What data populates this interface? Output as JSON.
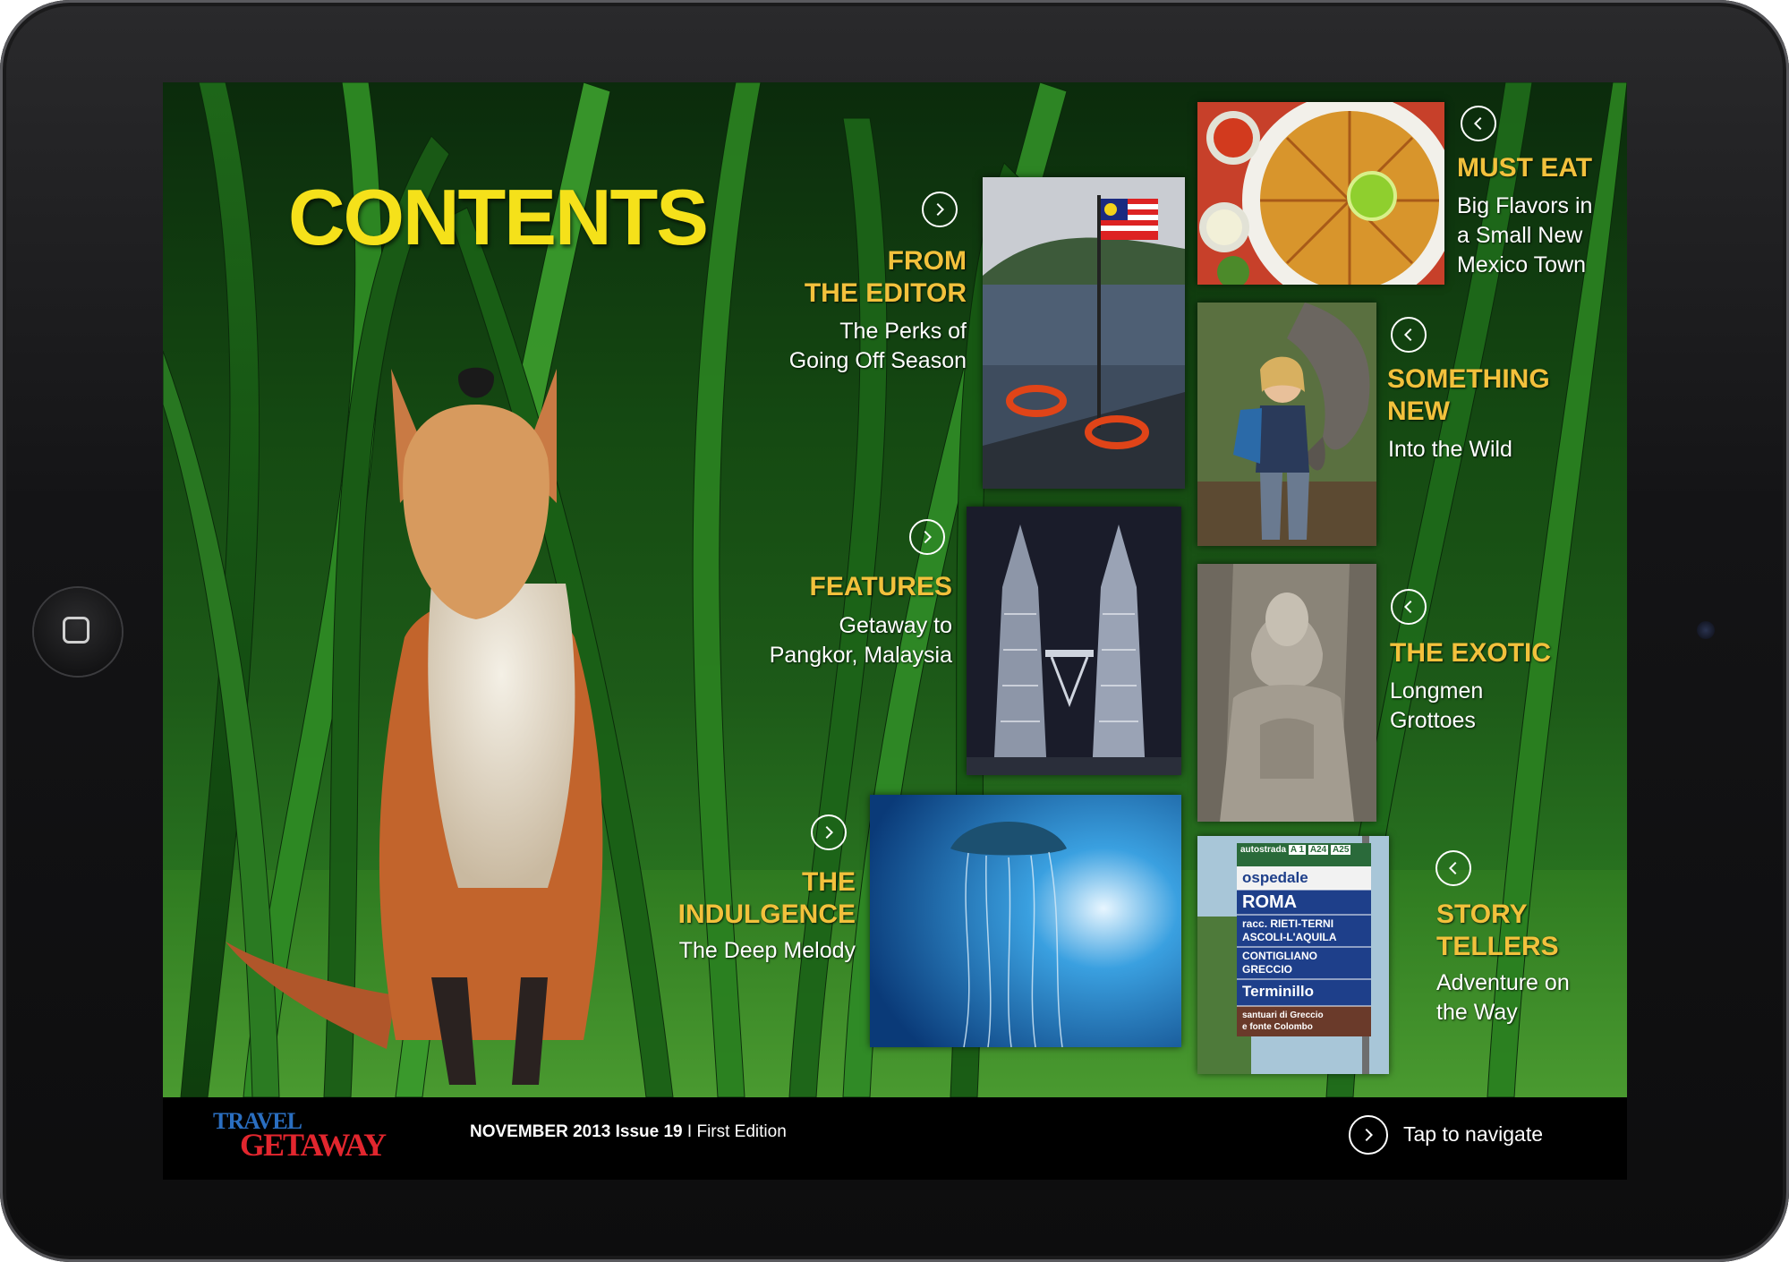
{
  "page": {
    "title": "CONTENTS"
  },
  "sections": {
    "from_editor": {
      "title_line1": "FROM",
      "title_line2": "THE EDITOR",
      "sub_line1": "The Perks of",
      "sub_line2": "Going Off Season"
    },
    "features": {
      "title": "FEATURES",
      "sub_line1": "Getaway to",
      "sub_line2": "Pangkor,  Malaysia"
    },
    "indulgence": {
      "title_line1": "THE",
      "title_line2": "INDULGENCE",
      "sub": "The Deep Melody"
    },
    "must_eat": {
      "title": "MUST EAT",
      "sub_line1": "Big Flavors in",
      "sub_line2": "a Small New",
      "sub_line3": "Mexico Town"
    },
    "something_new": {
      "title_line1": "SOMETHING",
      "title_line2": "NEW",
      "sub": "Into the Wild"
    },
    "exotic": {
      "title": "THE EXOTIC",
      "sub_line1": "Longmen",
      "sub_line2": "Grottoes"
    },
    "story_tellers": {
      "title_line1": "STORY",
      "title_line2": "TELLERS",
      "sub_line1": "Adventure on",
      "sub_line2": "the Way"
    }
  },
  "signs": {
    "line1": "autostrada",
    "badge1": "A 1",
    "badge2": "A24",
    "badge3": "A25",
    "line2": "ospedale",
    "line3": "ROMA",
    "line4": "racc. RIETI-TERNI",
    "line5": "ASCOLI-L'AQUILA",
    "line6": "CONTIGLIANO",
    "line7": "GRECCIO",
    "line8": "Terminillo",
    "line9": "santuari di Greccio",
    "line10": "e fonte Colombo"
  },
  "footer": {
    "logo_travel": "TRAVEL",
    "logo_getaway": "GETAWAY",
    "issue_bold": "NOVEMBER 2013 Issue 19",
    "issue_rest": " I First Edition",
    "tap_label": "Tap to navigate"
  },
  "icons": {
    "forward": "chevron-right-circle-icon",
    "back": "chevron-left-circle-icon"
  },
  "colors": {
    "title_yellow": "#f5e11a",
    "section_gold": "#f2c13c",
    "logo_blue": "#2a6ec0",
    "logo_red": "#e2262e"
  }
}
